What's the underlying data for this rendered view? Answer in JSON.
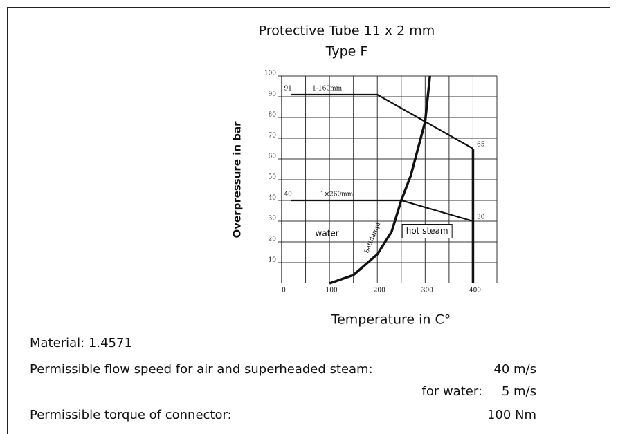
{
  "chart_data": {
    "type": "line",
    "title": [
      "Protective Tube 11 x 2 mm",
      "Type F"
    ],
    "x_label": "Temperature in C°",
    "y_label": "Overpressure in bar",
    "xlim": [
      0,
      450
    ],
    "ylim": [
      0,
      100
    ],
    "xticks": [
      0,
      100,
      200,
      300,
      400
    ],
    "minor_xticks": [
      50,
      150,
      250,
      350,
      450
    ],
    "yticks": [
      10,
      20,
      30,
      40,
      50,
      60,
      70,
      80,
      90,
      100
    ],
    "grid": true,
    "color": "#111111",
    "series": [
      {
        "name": "1-160mm",
        "x": [
          20,
          200,
          300,
          400
        ],
        "values": [
          91,
          91,
          78,
          65
        ]
      },
      {
        "name": "1×260mm",
        "x": [
          20,
          250,
          400
        ],
        "values": [
          40,
          40,
          30
        ]
      },
      {
        "name": "Sattdampf",
        "x": [
          100,
          150,
          200,
          230,
          250,
          270,
          285,
          300,
          310
        ],
        "values": [
          0,
          4,
          14,
          25,
          40,
          52,
          65,
          78,
          100
        ]
      },
      {
        "x": [
          400,
          400
        ],
        "values": [
          0,
          65
        ]
      }
    ],
    "annotations": [
      "water",
      "hot steam"
    ]
  },
  "specs": {
    "material": "Material: 1.4571",
    "rows": [
      {
        "label": "Permissible flow speed for air and superheaded steam:",
        "value": "40 m/s"
      },
      {
        "label": "for water:",
        "value": "5 m/s"
      },
      {
        "label": "Permissible torque of connector:",
        "value": "100 Nm"
      }
    ]
  }
}
